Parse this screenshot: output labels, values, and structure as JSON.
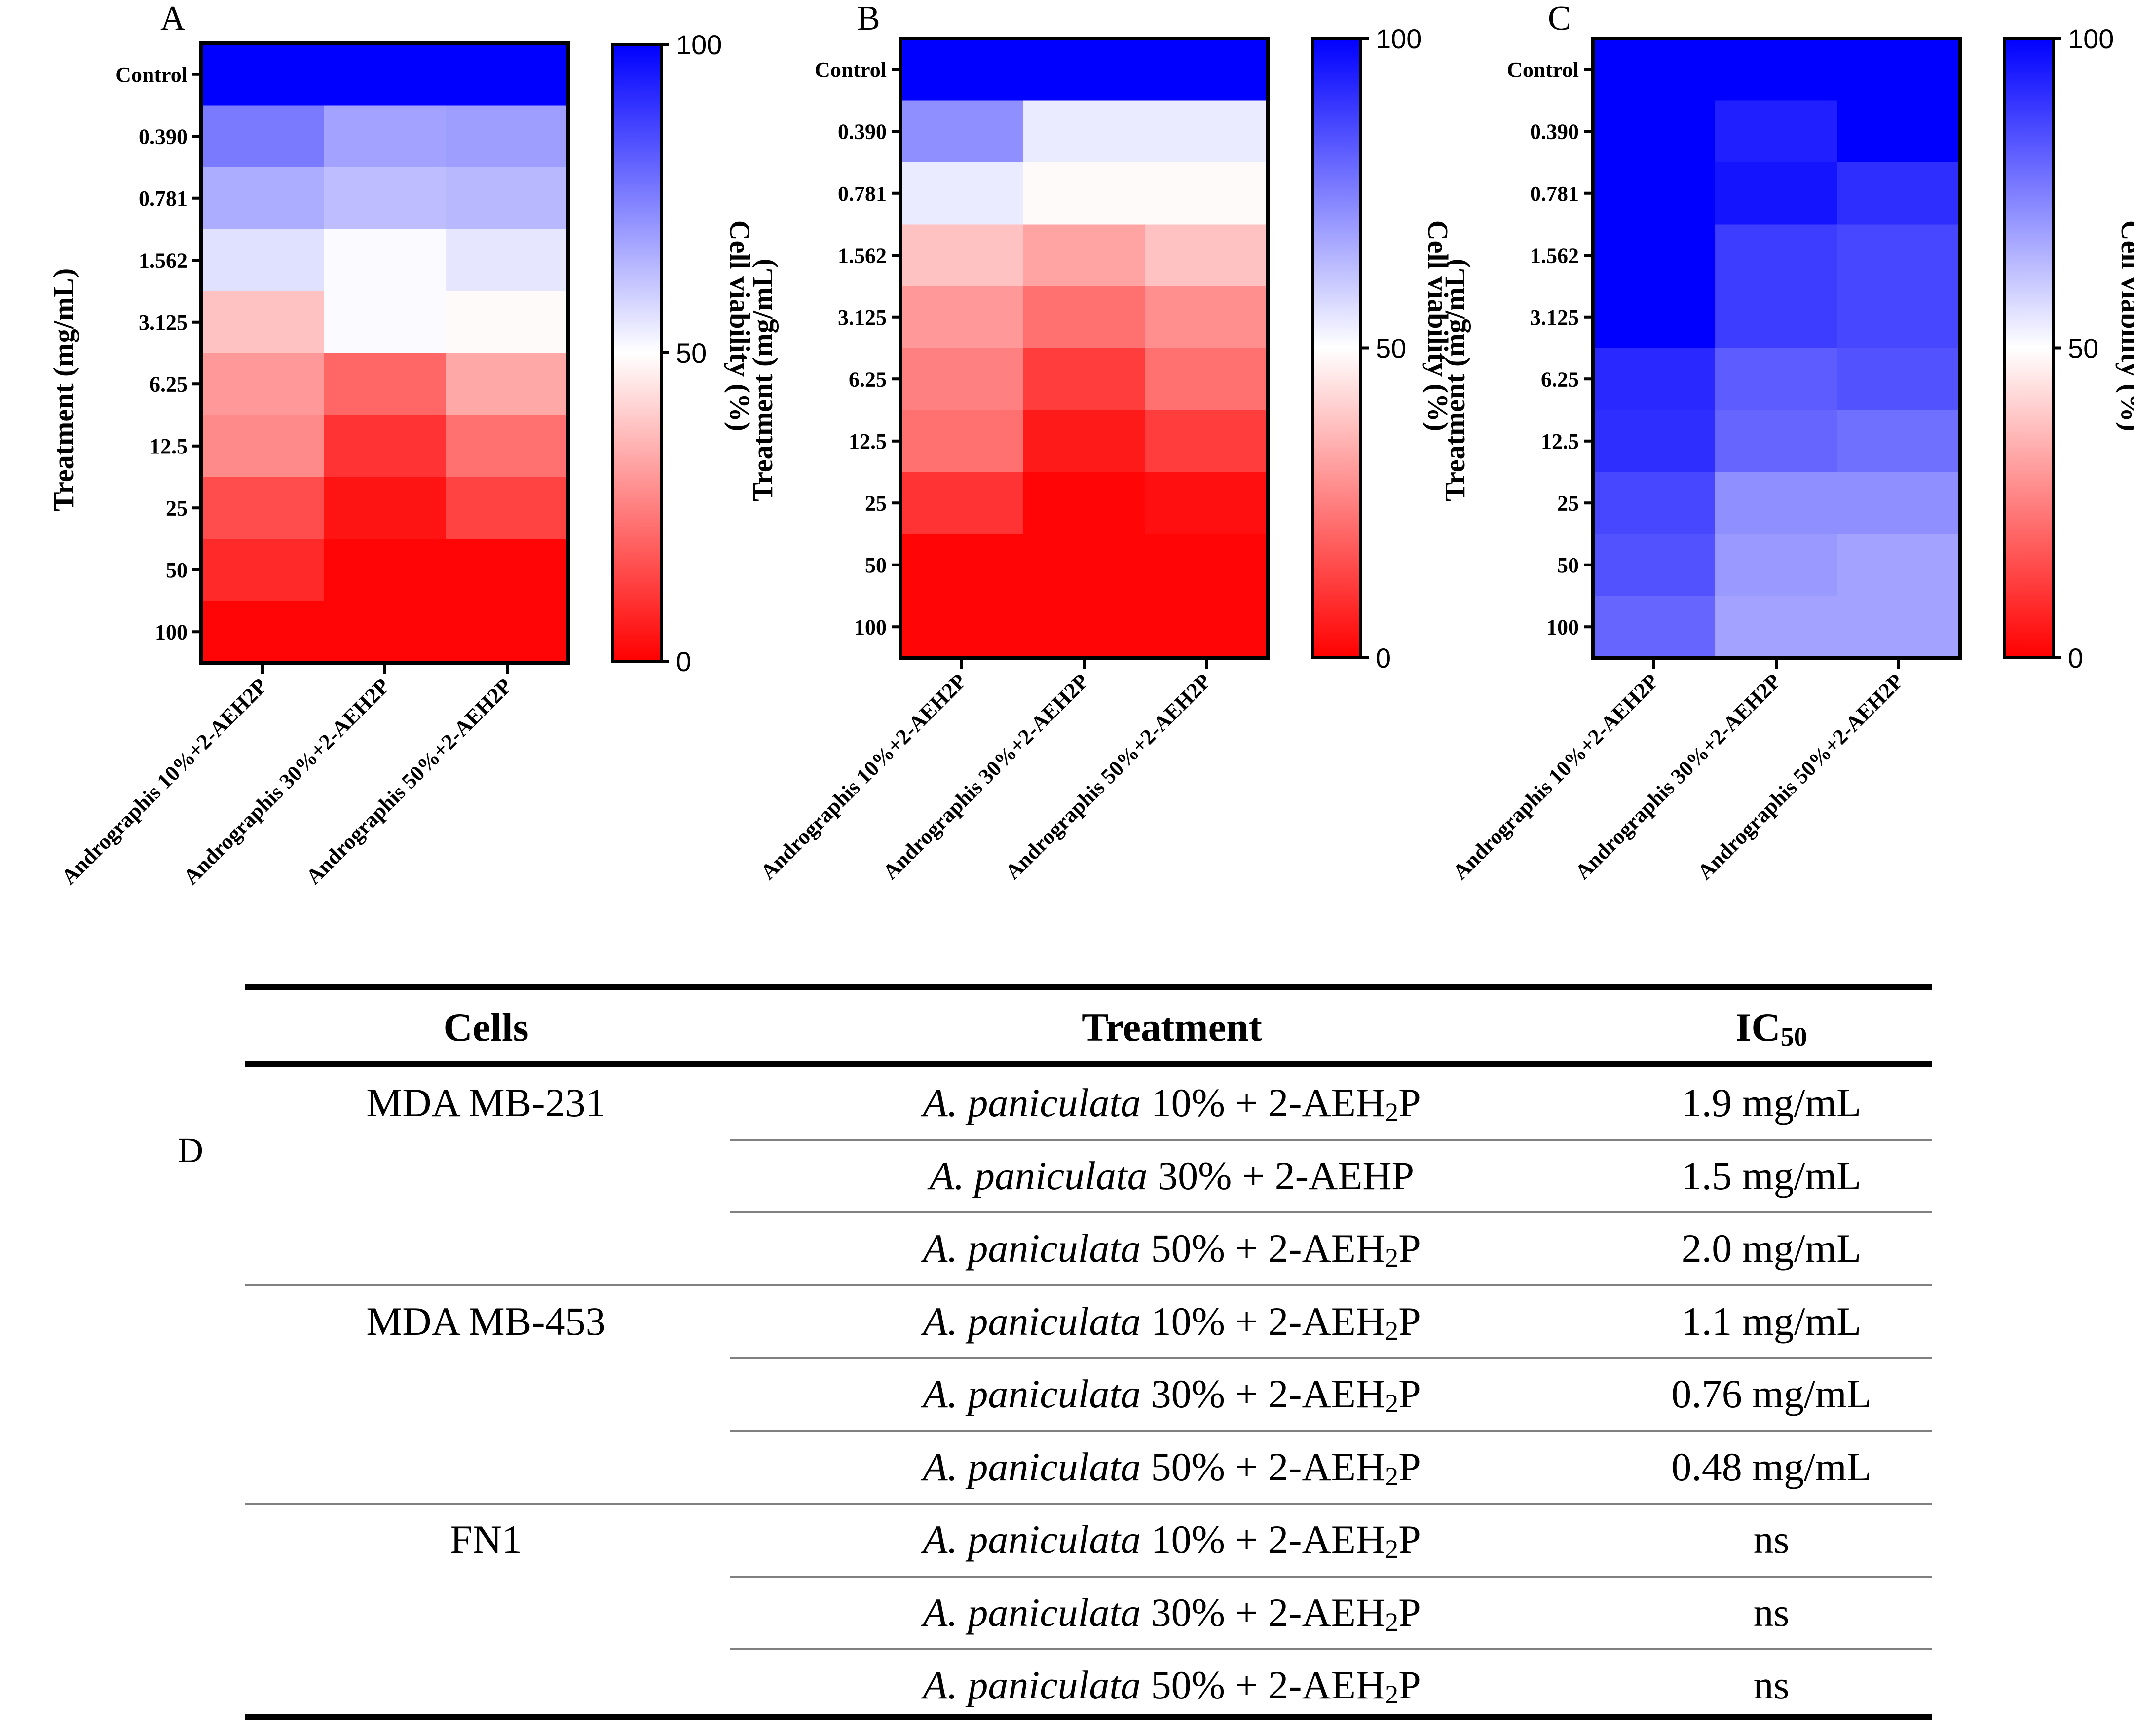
{
  "chart_data": [
    {
      "type": "heatmap",
      "panel_label": "A",
      "ylabel": "Treatment (mg/mL)",
      "colorbar_label": "Cell viability (%)",
      "colorbar_ticks": [
        "100",
        "50",
        "0"
      ],
      "zlim": [
        0,
        100
      ],
      "colormap": {
        "low": "#ff0000",
        "mid": "#ffffff",
        "high": "#0000ff"
      },
      "rows": [
        "Control",
        "0.390",
        "0.781",
        "1.562",
        "3.125",
        "6.25",
        "12.5",
        "25",
        "50",
        "100"
      ],
      "columns": [
        "Andrographis 10%+2-AEH2P",
        "Andrographis 30%+2-AEH2P",
        "Andrographis 50%+2-AEH2P"
      ],
      "values": [
        [
          100,
          100,
          100
        ],
        [
          76,
          68,
          69
        ],
        [
          66,
          63,
          64
        ],
        [
          56,
          51,
          55
        ],
        [
          38,
          51,
          49
        ],
        [
          30,
          20,
          33
        ],
        [
          27,
          10,
          22
        ],
        [
          15,
          4,
          13
        ],
        [
          8,
          1,
          1
        ],
        [
          1,
          1,
          1
        ]
      ]
    },
    {
      "type": "heatmap",
      "panel_label": "B",
      "ylabel": "Treatment (mg/mL)",
      "colorbar_label": "Cell viability (%)",
      "colorbar_ticks": [
        "100",
        "50",
        "0"
      ],
      "zlim": [
        0,
        100
      ],
      "colormap": {
        "low": "#ff0000",
        "mid": "#ffffff",
        "high": "#0000ff"
      },
      "rows": [
        "Control",
        "0.390",
        "0.781",
        "1.562",
        "3.125",
        "6.25",
        "12.5",
        "25",
        "50",
        "100"
      ],
      "columns": [
        "Andrographis 10%+2-AEH2P",
        "Andrographis 30%+2-AEH2P",
        "Andrographis 50%+2-AEH2P"
      ],
      "values": [
        [
          100,
          100,
          100
        ],
        [
          72,
          54,
          54
        ],
        [
          54,
          49,
          49
        ],
        [
          38,
          32,
          38
        ],
        [
          30,
          22,
          28
        ],
        [
          25,
          12,
          22
        ],
        [
          22,
          5,
          12
        ],
        [
          10,
          1,
          3
        ],
        [
          1,
          1,
          1
        ],
        [
          1,
          1,
          1
        ]
      ]
    },
    {
      "type": "heatmap",
      "panel_label": "C",
      "ylabel": "Treatment (mg/mL)",
      "colorbar_label": "Cell viability (%)",
      "colorbar_ticks": [
        "100",
        "50",
        "0"
      ],
      "zlim": [
        0,
        100
      ],
      "colormap": {
        "low": "#ff0000",
        "mid": "#ffffff",
        "high": "#0000ff"
      },
      "rows": [
        "Control",
        "0.390",
        "0.781",
        "1.562",
        "3.125",
        "6.25",
        "12.5",
        "25",
        "50",
        "100"
      ],
      "columns": [
        "Andrographis 10%+2-AEH2P",
        "Andrographis 30%+2-AEH2P",
        "Andrographis 50%+2-AEH2P"
      ],
      "values": [
        [
          100,
          100,
          100
        ],
        [
          100,
          94,
          100
        ],
        [
          100,
          96,
          91
        ],
        [
          100,
          88,
          86
        ],
        [
          100,
          88,
          86
        ],
        [
          92,
          82,
          84
        ],
        [
          91,
          80,
          78
        ],
        [
          86,
          72,
          72
        ],
        [
          84,
          70,
          68
        ],
        [
          80,
          68,
          68
        ]
      ]
    }
  ],
  "table": {
    "panel_label": "D",
    "headers": {
      "cells": "Cells",
      "treatment": "Treatment",
      "ic50": "IC",
      "ic50_sub": "50"
    },
    "groups": [
      "MDA MB-231",
      "MDA MB-453",
      "FN1"
    ],
    "rows": [
      {
        "italic": "A. paniculata",
        "plain": " 10% + 2-AEH",
        "sub": "2",
        "tail": "P",
        "ic50": "1.9 mg/mL"
      },
      {
        "italic": "A. paniculata",
        "plain": " 30% + 2-AEHP",
        "sub": "",
        "tail": "",
        "ic50": "1.5 mg/mL"
      },
      {
        "italic": "A. paniculata",
        "plain": " 50% + 2-AEH",
        "sub": "2",
        "tail": "P",
        "ic50": "2.0 mg/mL"
      },
      {
        "italic": "A. paniculata",
        "plain": " 10% + 2-AEH",
        "sub": "2",
        "tail": "P",
        "ic50": "1.1 mg/mL"
      },
      {
        "italic": "A. paniculata",
        "plain": " 30% + 2-AEH",
        "sub": "2",
        "tail": "P",
        "ic50": "0.76 mg/mL"
      },
      {
        "italic": "A. paniculata",
        "plain": " 50% + 2-AEH",
        "sub": "2",
        "tail": "P",
        "ic50": "0.48 mg/mL"
      },
      {
        "italic": "A. paniculata",
        "plain": " 10% + 2-AEH",
        "sub": "2",
        "tail": "P",
        "ic50": "ns"
      },
      {
        "italic": "A. paniculata",
        "plain": " 30% + 2-AEH",
        "sub": "2",
        "tail": "P",
        "ic50": "ns"
      },
      {
        "italic": "A. paniculata",
        "plain": " 50% + 2-AEH",
        "sub": "2",
        "tail": "P",
        "ic50": "ns"
      }
    ]
  }
}
